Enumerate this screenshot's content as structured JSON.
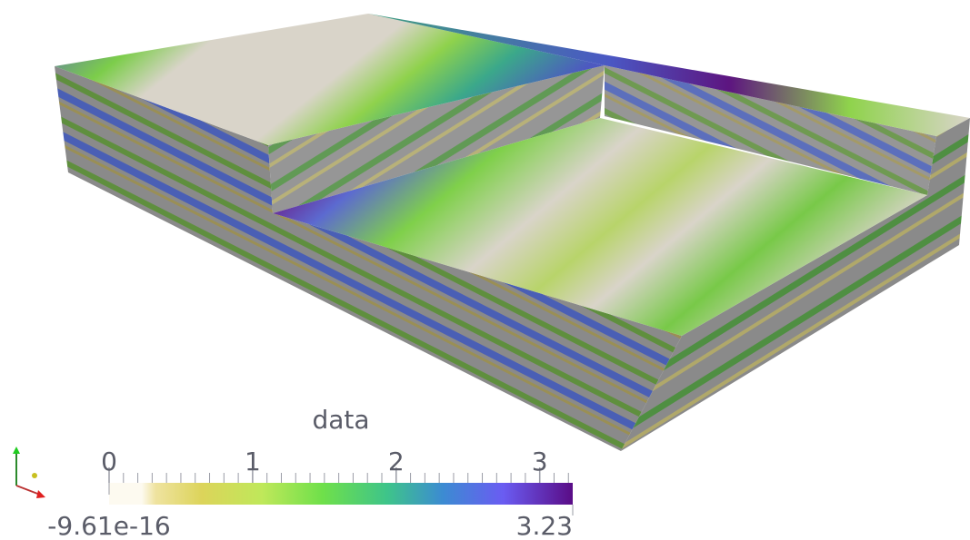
{
  "colorbar": {
    "title": "data",
    "range": [
      -9.61e-16,
      3.23
    ],
    "ticks": [
      0,
      1,
      2,
      3
    ]
  }
}
